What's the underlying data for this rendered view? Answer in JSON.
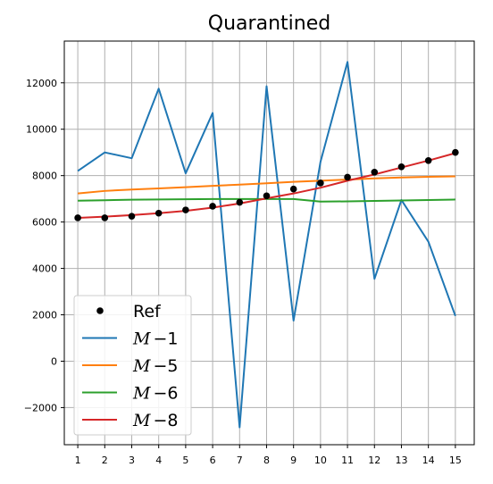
{
  "chart_data": {
    "type": "line",
    "title": "Quarantined",
    "xlabel": "",
    "ylabel": "",
    "x": [
      1,
      2,
      3,
      4,
      5,
      6,
      7,
      8,
      9,
      10,
      11,
      12,
      13,
      14,
      15
    ],
    "xlim": [
      0.5,
      15.7
    ],
    "ylim": [
      -3600,
      13800
    ],
    "yticks": [
      -2000,
      0,
      2000,
      4000,
      6000,
      8000,
      10000,
      12000
    ],
    "ytick_labels": [
      "−2000",
      "0",
      "2000",
      "4000",
      "6000",
      "8000",
      "10000",
      "12000"
    ],
    "xtick_labels": [
      "1",
      "2",
      "3",
      "4",
      "5",
      "6",
      "7",
      "8",
      "9",
      "10",
      "11",
      "12",
      "13",
      "14",
      "15"
    ],
    "grid": true,
    "legend_position": "bottom-left",
    "series": [
      {
        "name": "Ref",
        "style": "markers",
        "color": "#000000",
        "values": [
          6180,
          6180,
          6250,
          6380,
          6520,
          6680,
          6850,
          7130,
          7420,
          7680,
          7930,
          8150,
          8380,
          8650,
          9000
        ]
      },
      {
        "name": "M−1",
        "name_parts": [
          "M",
          "−1"
        ],
        "style": "line",
        "color": "#1f77b4",
        "values": [
          8200,
          9000,
          8750,
          11750,
          8100,
          10700,
          -2850,
          11850,
          1750,
          8600,
          12900,
          3550,
          6950,
          5150,
          1950
        ]
      },
      {
        "name": "M−5",
        "name_parts": [
          "M",
          "−5"
        ],
        "style": "line",
        "color": "#ff7f0e",
        "values": [
          7230,
          7340,
          7400,
          7450,
          7500,
          7560,
          7610,
          7670,
          7730,
          7780,
          7830,
          7880,
          7920,
          7950,
          7970
        ]
      },
      {
        "name": "M−6",
        "name_parts": [
          "M",
          "−6"
        ],
        "style": "line",
        "color": "#2ca02c",
        "values": [
          6920,
          6940,
          6960,
          6970,
          6980,
          6990,
          6990,
          6990,
          6990,
          6880,
          6890,
          6910,
          6930,
          6950,
          6970
        ]
      },
      {
        "name": "M−8",
        "name_parts": [
          "M",
          "−8"
        ],
        "style": "line",
        "color": "#d62728",
        "values": [
          6180,
          6230,
          6300,
          6380,
          6480,
          6620,
          6800,
          7020,
          7230,
          7480,
          7780,
          8050,
          8350,
          8650,
          8970
        ]
      }
    ]
  }
}
